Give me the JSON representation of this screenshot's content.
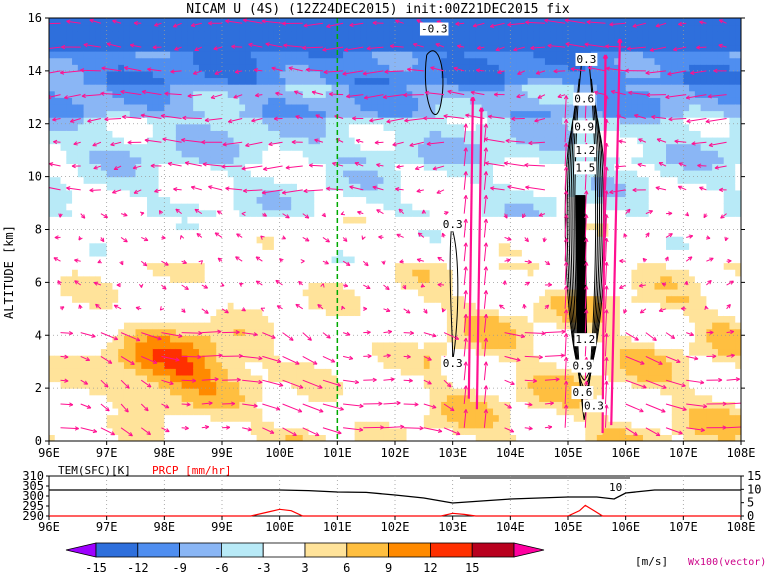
{
  "title": "NICAM U (4S) (12Z24DEC2015) init:00Z21DEC2015 fix",
  "chart_data": [
    {
      "type": "heatmap",
      "ylabel": "ALTITUDE [km]",
      "xlim": [
        96,
        108
      ],
      "ylim": [
        0,
        16
      ],
      "grid": true,
      "x_ticks": [
        "96E",
        "97E",
        "98E",
        "99E",
        "100E",
        "101E",
        "102E",
        "103E",
        "104E",
        "105E",
        "106E",
        "107E",
        "108E"
      ],
      "y_ticks": [
        "0",
        "2",
        "4",
        "6",
        "8",
        "10",
        "12",
        "14",
        "16"
      ],
      "marker_line_lon": 101,
      "contour_labels": [
        {
          "text": "-0.3",
          "lon": 102.68,
          "alt": 15.45
        },
        {
          "text": "0.3",
          "lon": 105.32,
          "alt": 14.3
        },
        {
          "text": "0.6",
          "lon": 105.28,
          "alt": 12.8
        },
        {
          "text": "0.9",
          "lon": 105.28,
          "alt": 11.75
        },
        {
          "text": "1.2",
          "lon": 105.3,
          "alt": 10.85
        },
        {
          "text": "1.5",
          "lon": 105.3,
          "alt": 10.2
        },
        {
          "text": "0.3",
          "lon": 103.0,
          "alt": 8.05
        },
        {
          "text": "0.3",
          "lon": 103.0,
          "alt": 2.8
        },
        {
          "text": "1.2",
          "lon": 105.3,
          "alt": 3.7
        },
        {
          "text": "0.9",
          "lon": 105.25,
          "alt": 2.7
        },
        {
          "text": "0.6",
          "lon": 105.25,
          "alt": 1.7
        },
        {
          "text": "0.3",
          "lon": 105.45,
          "alt": 1.2
        }
      ],
      "fields": [
        "U wind (m/s) shaded",
        "vertical velocity contours",
        "wind vectors"
      ]
    },
    {
      "type": "line",
      "xlim": [
        96,
        108
      ],
      "left_label": "TEM(SFC)[K]",
      "right_label": "PRCP [mm/hr]",
      "left_ticks": [
        "290",
        "295",
        "300",
        "305",
        "310"
      ],
      "right_ticks": [
        "0",
        "5",
        "10",
        "15"
      ],
      "series": [
        {
          "name": "TEM(SFC)[K]",
          "x": [
            96,
            97,
            98,
            99,
            100,
            100.5,
            101,
            101.5,
            102,
            102.5,
            103,
            103.5,
            104,
            104.5,
            105,
            105.5,
            105.8,
            106,
            106.5,
            107,
            108
          ],
          "values": [
            303,
            303,
            303,
            303,
            303,
            302.7,
            302,
            301.8,
            300.5,
            299,
            296.5,
            297.5,
            298.5,
            299,
            299.5,
            299.5,
            298.5,
            301.5,
            303,
            303,
            303
          ]
        },
        {
          "name": "PRCP [mm/hr]",
          "x": [
            96,
            99.5,
            99.8,
            100,
            100.2,
            100.4,
            101,
            102.8,
            103,
            103.2,
            103.4,
            105,
            105.2,
            105.3,
            105.45,
            105.6,
            108
          ],
          "values": [
            0,
            0,
            1.5,
            2.5,
            2,
            0,
            0,
            0,
            1,
            0.6,
            0,
            0,
            2,
            4,
            2,
            0,
            0
          ]
        }
      ],
      "annotation": "10"
    }
  ],
  "colorbar": {
    "values": [
      "-15",
      "-12",
      "-9",
      "-6",
      "-3",
      "3",
      "6",
      "9",
      "12",
      "15"
    ],
    "unit": "[m/s]",
    "colors": [
      "#9e00ff",
      "#2e6fdc",
      "#4f8ef0",
      "#8ab6f5",
      "#b8eaf7",
      "#ffffff",
      "#ffe39a",
      "#ffbf40",
      "#ff8a00",
      "#ff3000",
      "#b8001e",
      "#ff00a0"
    ]
  },
  "vector_label": "Wx100(vector)",
  "colors": {
    "vector": "#ff1090",
    "marker_line": "#00aa00",
    "precip": "#ff0000",
    "temp": "#000000"
  }
}
